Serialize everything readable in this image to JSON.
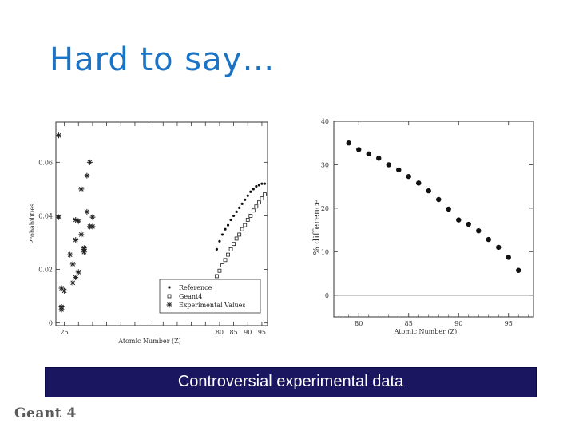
{
  "slide": {
    "title": "Hard to say…",
    "caption": "Controversial experimental data",
    "logo": "Geant 4"
  },
  "chart_data": [
    {
      "type": "scatter",
      "xlabel": "Atomic Number (Z)",
      "ylabel": "Probabilities",
      "xlim": [
        22,
        97
      ],
      "ylim": [
        -0.001,
        0.075
      ],
      "xticks": [
        25,
        30,
        35,
        40,
        45,
        50,
        55,
        60,
        65,
        70,
        75,
        80,
        85,
        90,
        95
      ],
      "xtick_labels": [
        "25",
        "",
        "",
        "",
        "",
        "",
        "",
        "",
        "",
        "",
        "",
        "80",
        "85",
        "90",
        "95"
      ],
      "yticks": [
        0,
        0.02,
        0.04,
        0.06
      ],
      "ytick_labels": [
        "0",
        "0.02",
        "0.04",
        "0.06"
      ],
      "legend_position": "bottom-right",
      "series": [
        {
          "name": "Reference",
          "marker": "dot",
          "x": [
            79,
            80,
            81,
            82,
            83,
            84,
            85,
            86,
            87,
            88,
            89,
            90,
            91,
            92,
            93,
            94,
            95,
            96
          ],
          "y": [
            0.0275,
            0.0305,
            0.033,
            0.035,
            0.0365,
            0.0385,
            0.04,
            0.0415,
            0.043,
            0.0445,
            0.046,
            0.0475,
            0.049,
            0.05,
            0.051,
            0.0515,
            0.052,
            0.052
          ]
        },
        {
          "name": "Geant4",
          "marker": "square",
          "x": [
            79,
            80,
            81,
            82,
            83,
            84,
            85,
            86,
            87,
            88,
            89,
            90,
            91,
            92,
            93,
            94,
            95,
            96
          ],
          "y": [
            0.0175,
            0.0195,
            0.0215,
            0.0235,
            0.0255,
            0.0275,
            0.0295,
            0.0315,
            0.033,
            0.035,
            0.0365,
            0.0385,
            0.04,
            0.042,
            0.0435,
            0.045,
            0.0465,
            0.048
          ]
        },
        {
          "name": "Experimental Values",
          "marker": "asterisk",
          "x": [
            23,
            23,
            24,
            24,
            24,
            25,
            27,
            28,
            28,
            29,
            29,
            29,
            30,
            30,
            31,
            31,
            32,
            32,
            32,
            33,
            33,
            34,
            34,
            35,
            35
          ],
          "y": [
            0.07,
            0.0395,
            0.013,
            0.006,
            0.005,
            0.012,
            0.0255,
            0.022,
            0.015,
            0.0385,
            0.031,
            0.017,
            0.038,
            0.019,
            0.05,
            0.033,
            0.028,
            0.0265,
            0.0275,
            0.055,
            0.0415,
            0.06,
            0.036,
            0.0395,
            0.036
          ]
        }
      ]
    },
    {
      "type": "scatter",
      "xlabel": "Atomic Number (Z)",
      "ylabel": "% difference",
      "xlim": [
        77.5,
        97.5
      ],
      "ylim": [
        -5,
        40
      ],
      "xticks": [
        80,
        85,
        90,
        95
      ],
      "xtick_labels": [
        "80",
        "85",
        "90",
        "95"
      ],
      "yticks": [
        0,
        10,
        20,
        30,
        40
      ],
      "ytick_labels": [
        "0",
        "10",
        "20",
        "30",
        "40"
      ],
      "zero_line": 0,
      "series": [
        {
          "marker": "dot",
          "x": [
            79,
            80,
            81,
            82,
            83,
            84,
            85,
            86,
            87,
            88,
            89,
            90,
            91,
            92,
            93,
            94,
            95,
            96
          ],
          "y": [
            35.0,
            33.5,
            32.5,
            31.5,
            30.0,
            28.8,
            27.3,
            25.8,
            24.0,
            22.0,
            19.8,
            17.3,
            16.3,
            14.8,
            12.8,
            11.0,
            8.7,
            5.7
          ]
        }
      ]
    }
  ]
}
